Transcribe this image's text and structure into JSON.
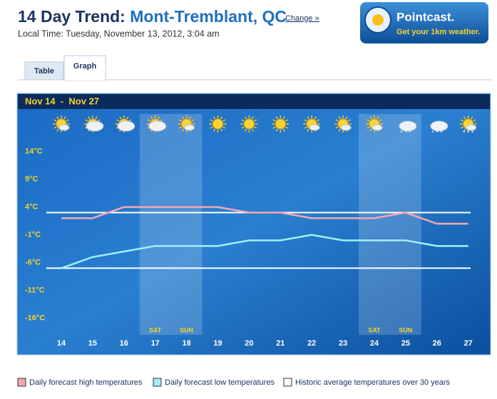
{
  "header": {
    "title_prefix": "14 Day Trend:",
    "location": "Mont-Tremblant, QC",
    "change_link": "Change »",
    "local_time": "Local Time: Tuesday, November 13, 2012, 3:04 am"
  },
  "badge": {
    "title": "Pointcast.",
    "subtitle": "Get your 1km weather."
  },
  "tabs": [
    "Table",
    "Graph"
  ],
  "chart_data": {
    "type": "line",
    "title": "Nov 14  -  Nov 27",
    "categories": [
      "14",
      "15",
      "16",
      "17",
      "18",
      "19",
      "20",
      "21",
      "22",
      "23",
      "24",
      "25",
      "26",
      "27"
    ],
    "day_labels": [
      null,
      null,
      null,
      "SAT",
      "SUN",
      null,
      null,
      null,
      null,
      null,
      "SAT",
      "SUN",
      null,
      null
    ],
    "series": [
      {
        "name": "Daily forecast high temperatures",
        "color": "#f4a7b3",
        "values": [
          2,
          2,
          4,
          4,
          4,
          4,
          3,
          3,
          2,
          2,
          2,
          3,
          1,
          1
        ]
      },
      {
        "name": "Daily forecast low temperatures",
        "color": "#9ff0f7",
        "values": [
          -7,
          -5,
          -4,
          -3,
          -3,
          -3,
          -2,
          -2,
          -1,
          -2,
          -2,
          -2,
          -3,
          -3
        ]
      }
    ],
    "reference": {
      "name": "Historic average temperatures over 30 years",
      "color": "#ffffff",
      "values": [
        3,
        -7
      ]
    },
    "ylim": [
      -19,
      16
    ],
    "yticks": [
      {
        "value": 14,
        "label": "14°C"
      },
      {
        "value": 9,
        "label": "9°C"
      },
      {
        "value": 4,
        "label": "4°C"
      },
      {
        "value": -1,
        "label": "-1°C"
      },
      {
        "value": -6,
        "label": "-6°C"
      },
      {
        "value": -11,
        "label": "-11°C"
      },
      {
        "value": -16,
        "label": "-16°C"
      }
    ]
  }
}
